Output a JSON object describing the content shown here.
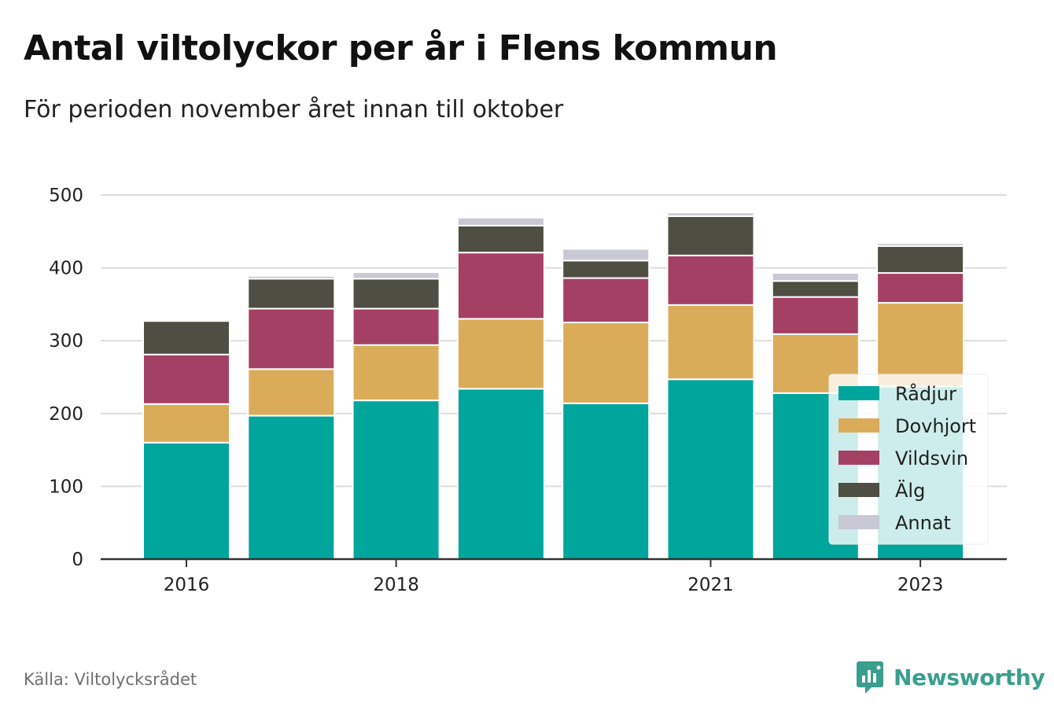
{
  "chart_data": {
    "type": "bar",
    "stacked": true,
    "title": "Antal viltolyckor per år i Flens kommun",
    "subtitle": "För perioden november året innan till oktober",
    "source": "Källa: Viltolycksrådet",
    "brand": "Newsworthy",
    "categories": [
      2016,
      2017,
      2018,
      2019,
      2020,
      2021,
      2022,
      2023
    ],
    "x_tick_labels": [
      "2016",
      "2018",
      "2021",
      "2023"
    ],
    "x_ticks": [
      2016,
      2018,
      2021,
      2023
    ],
    "y_ticks": [
      0,
      100,
      200,
      300,
      400,
      500
    ],
    "ylim": [
      0,
      520
    ],
    "grid": true,
    "legend_position": "bottom-right",
    "series": [
      {
        "name": "Rådjur",
        "color": "#00a59b",
        "values": [
          160,
          197,
          218,
          234,
          214,
          247,
          228,
          237
        ]
      },
      {
        "name": "Dovhjort",
        "color": "#daac5a",
        "values": [
          53,
          64,
          76,
          96,
          111,
          102,
          81,
          115
        ]
      },
      {
        "name": "Vildsvin",
        "color": "#a54065",
        "values": [
          68,
          83,
          50,
          91,
          61,
          68,
          51,
          41
        ]
      },
      {
        "name": "Älg",
        "color": "#4e4e42",
        "values": [
          46,
          41,
          41,
          37,
          24,
          54,
          22,
          37
        ]
      },
      {
        "name": "Annat",
        "color": "#c9c8d5",
        "values": [
          0,
          4,
          9,
          11,
          16,
          5,
          11,
          4
        ]
      }
    ]
  }
}
